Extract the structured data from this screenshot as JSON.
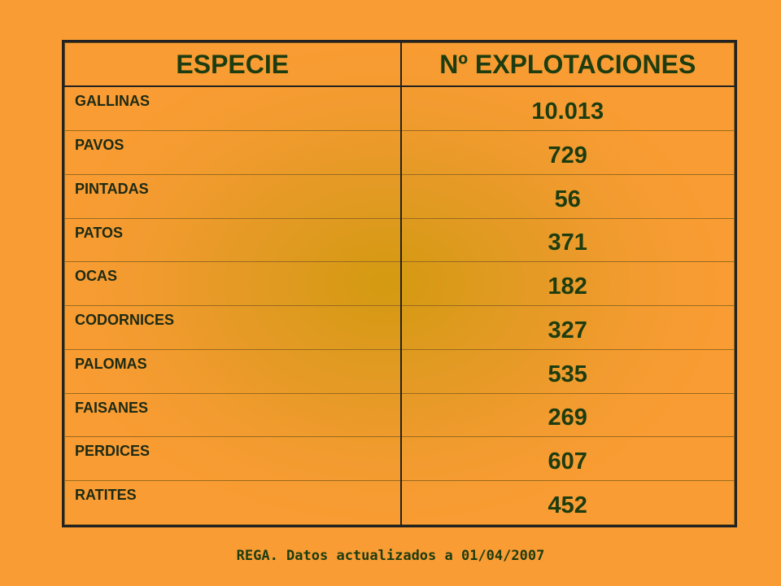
{
  "table": {
    "headers": [
      "ESPECIE",
      "Nº EXPLOTACIONES"
    ],
    "rows": [
      {
        "species": "GALLINAS",
        "count": "10.013"
      },
      {
        "species": "PAVOS",
        "count": "729"
      },
      {
        "species": "PINTADAS",
        "count": "56"
      },
      {
        "species": "PATOS",
        "count": "371"
      },
      {
        "species": "OCAS",
        "count": "182"
      },
      {
        "species": "CODORNICES",
        "count": "327"
      },
      {
        "species": "PALOMAS",
        "count": "535"
      },
      {
        "species": "FAISANES",
        "count": "269"
      },
      {
        "species": "PERDICES",
        "count": "607"
      },
      {
        "species": "RATITES",
        "count": "452"
      }
    ]
  },
  "footer": {
    "source": "REGA. Datos actualizados a 01/04/2007"
  },
  "colors": {
    "background": "#f99c33",
    "text": "#1d3c10",
    "border": "#222222"
  }
}
